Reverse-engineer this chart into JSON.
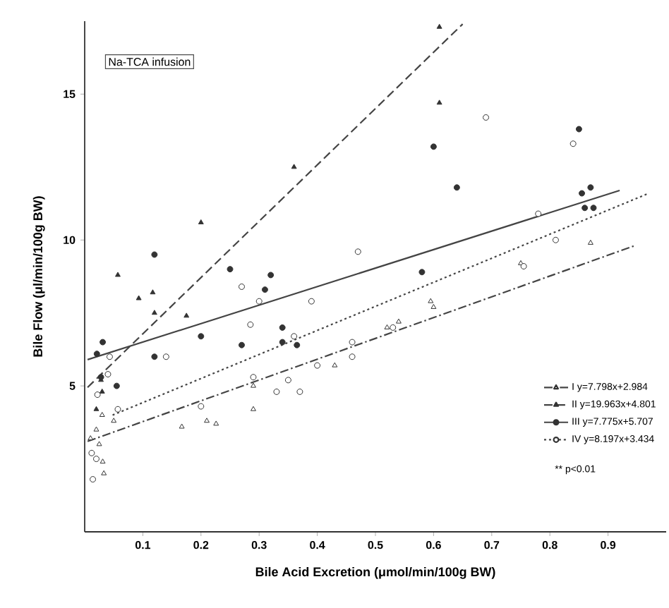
{
  "chart_data": {
    "type": "scatter",
    "title": "Na-TCA infusion",
    "xlabel": "Bile Acid Excretion (μmol/min/100g BW)",
    "ylabel": "Bile Flow (μl/min/100g BW)",
    "xlim": [
      0,
      1.0
    ],
    "ylim": [
      0,
      17.5
    ],
    "xticks": [
      0.1,
      0.2,
      0.3,
      0.4,
      0.5,
      0.6,
      0.7,
      0.8,
      0.9
    ],
    "yticks": [
      5,
      10,
      15
    ],
    "legend": "bottom right",
    "annotations": [
      "** p<0.01"
    ],
    "series": [
      {
        "marker": "triangle",
        "color": "#ffffff",
        "x": [
          0.01,
          0.02,
          0.025,
          0.03,
          0.031,
          0.033,
          0.05,
          0.167,
          0.21,
          0.226,
          0.29,
          0.29,
          0.43,
          0.52,
          0.54,
          0.595,
          0.6,
          0.75,
          0.87
        ],
        "values": [
          3.2,
          3.5,
          3.0,
          4.0,
          2.4,
          2.0,
          3.8,
          3.6,
          3.8,
          3.7,
          4.2,
          5.0,
          5.7,
          7.0,
          7.2,
          7.9,
          7.7,
          9.2,
          9.9
        ]
      },
      {
        "type": "line",
        "name": "I  y=7.798x+2.984",
        "line_style": "dashdot",
        "color": "#444444",
        "x": [
          0.005,
          0.945
        ],
        "values": [
          3.1,
          9.8
        ]
      },
      {
        "marker": "triangle",
        "color": "#333333",
        "x": [
          0.02,
          0.028,
          0.03,
          0.057,
          0.093,
          0.117,
          0.12,
          0.175,
          0.2,
          0.36,
          0.61,
          0.61
        ],
        "values": [
          4.2,
          5.2,
          4.8,
          8.8,
          8.0,
          8.2,
          7.5,
          7.4,
          10.6,
          12.5,
          17.3,
          14.7
        ]
      },
      {
        "type": "line",
        "name": "II  y=19.963x+4.801",
        "line_style": "dashed",
        "color": "#444444",
        "x": [
          0.005,
          0.65
        ],
        "values": [
          4.95,
          17.4
        ]
      },
      {
        "marker": "circle",
        "color": "#333333",
        "x": [
          0.021,
          0.028,
          0.031,
          0.055,
          0.12,
          0.12,
          0.2,
          0.25,
          0.27,
          0.31,
          0.32,
          0.34,
          0.34,
          0.365,
          0.58,
          0.6,
          0.64,
          0.85,
          0.855,
          0.86,
          0.87,
          0.875
        ],
        "values": [
          6.1,
          5.3,
          6.5,
          5.0,
          9.5,
          6.0,
          6.7,
          9.0,
          6.4,
          8.3,
          8.8,
          7.0,
          6.5,
          6.4,
          8.9,
          13.2,
          11.8,
          13.8,
          11.6,
          11.1,
          11.8,
          11.1
        ]
      },
      {
        "type": "line",
        "name": "III  y=7.775x+5.707",
        "line_style": "solid",
        "color": "#444444",
        "x": [
          0.005,
          0.92
        ],
        "values": [
          5.9,
          11.7
        ]
      },
      {
        "marker": "circle",
        "color": "#ffffff",
        "x": [
          0.012,
          0.014,
          0.02,
          0.022,
          0.04,
          0.043,
          0.057,
          0.14,
          0.2,
          0.27,
          0.285,
          0.29,
          0.3,
          0.33,
          0.35,
          0.36,
          0.37,
          0.39,
          0.4,
          0.46,
          0.46,
          0.47,
          0.53,
          0.69,
          0.755,
          0.78,
          0.81,
          0.84
        ],
        "values": [
          2.7,
          1.8,
          2.5,
          4.7,
          5.4,
          6.0,
          4.2,
          6.0,
          4.3,
          8.4,
          7.1,
          5.3,
          7.9,
          4.8,
          5.2,
          6.7,
          4.8,
          7.9,
          5.7,
          6.5,
          6.0,
          9.6,
          7.0,
          14.2,
          9.1,
          10.9,
          10.0,
          13.3
        ]
      },
      {
        "type": "line",
        "name": "IV  y=8.197x+3.434",
        "line_style": "dotted",
        "color": "#444444",
        "x": [
          0.048,
          0.97
        ],
        "values": [
          4.0,
          11.6
        ]
      }
    ]
  }
}
